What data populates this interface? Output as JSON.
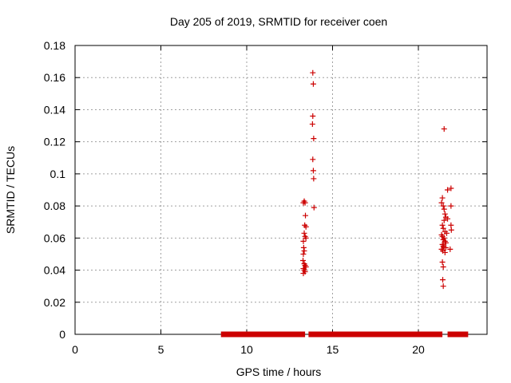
{
  "chart_data": {
    "type": "scatter",
    "title": "Day 205 of 2019, SRMTID for receiver coen",
    "xlabel": "GPS time / hours",
    "ylabel": "SRMTID / TECUs",
    "xlim": [
      0,
      24
    ],
    "ylim": [
      0,
      0.18
    ],
    "xticks": [
      0,
      5,
      10,
      15,
      20
    ],
    "yticks": [
      0,
      0.02,
      0.04,
      0.06,
      0.08,
      0.1,
      0.12,
      0.14,
      0.16,
      0.18
    ],
    "xtick_labels": [
      "0",
      "5",
      "10",
      "15",
      "20"
    ],
    "ytick_labels": [
      "0",
      "0.02",
      "0.04",
      "0.06",
      "0.08",
      "0.1",
      "0.12",
      "0.14",
      "0.16",
      "0.18"
    ],
    "grid": true,
    "marker": "+",
    "color": "#cc0000",
    "zero_line_segments": [
      [
        8.5,
        13.4
      ],
      [
        13.6,
        21.4
      ],
      [
        21.7,
        22.9
      ]
    ],
    "points": [
      [
        13.3,
        0.082
      ],
      [
        13.35,
        0.083
      ],
      [
        13.4,
        0.082
      ],
      [
        13.42,
        0.074
      ],
      [
        13.38,
        0.068
      ],
      [
        13.45,
        0.067
      ],
      [
        13.35,
        0.063
      ],
      [
        13.4,
        0.061
      ],
      [
        13.45,
        0.06
      ],
      [
        13.3,
        0.058
      ],
      [
        13.32,
        0.054
      ],
      [
        13.35,
        0.052
      ],
      [
        13.3,
        0.05
      ],
      [
        13.28,
        0.046
      ],
      [
        13.35,
        0.044
      ],
      [
        13.4,
        0.043
      ],
      [
        13.3,
        0.041
      ],
      [
        13.35,
        0.04
      ],
      [
        13.4,
        0.039
      ],
      [
        13.3,
        0.038
      ],
      [
        13.45,
        0.042
      ],
      [
        13.85,
        0.163
      ],
      [
        13.88,
        0.156
      ],
      [
        13.85,
        0.136
      ],
      [
        13.83,
        0.131
      ],
      [
        13.9,
        0.122
      ],
      [
        13.85,
        0.109
      ],
      [
        13.88,
        0.102
      ],
      [
        13.9,
        0.097
      ],
      [
        13.92,
        0.079
      ],
      [
        21.5,
        0.128
      ],
      [
        21.4,
        0.085
      ],
      [
        21.35,
        0.082
      ],
      [
        21.45,
        0.08
      ],
      [
        21.5,
        0.078
      ],
      [
        21.55,
        0.075
      ],
      [
        21.6,
        0.073
      ],
      [
        21.5,
        0.071
      ],
      [
        21.4,
        0.068
      ],
      [
        21.45,
        0.066
      ],
      [
        21.55,
        0.064
      ],
      [
        21.35,
        0.062
      ],
      [
        21.4,
        0.061
      ],
      [
        21.5,
        0.06
      ],
      [
        21.45,
        0.059
      ],
      [
        21.55,
        0.058
      ],
      [
        21.6,
        0.057
      ],
      [
        21.4,
        0.056
      ],
      [
        21.45,
        0.055
      ],
      [
        21.5,
        0.054
      ],
      [
        21.35,
        0.053
      ],
      [
        21.42,
        0.052
      ],
      [
        21.55,
        0.051
      ],
      [
        21.6,
        0.054
      ],
      [
        21.65,
        0.063
      ],
      [
        21.7,
        0.072
      ],
      [
        21.4,
        0.045
      ],
      [
        21.45,
        0.042
      ],
      [
        21.42,
        0.034
      ],
      [
        21.45,
        0.03
      ],
      [
        21.7,
        0.09
      ],
      [
        21.9,
        0.091
      ],
      [
        21.9,
        0.08
      ],
      [
        21.9,
        0.068
      ],
      [
        21.92,
        0.065
      ],
      [
        21.85,
        0.053
      ]
    ]
  }
}
